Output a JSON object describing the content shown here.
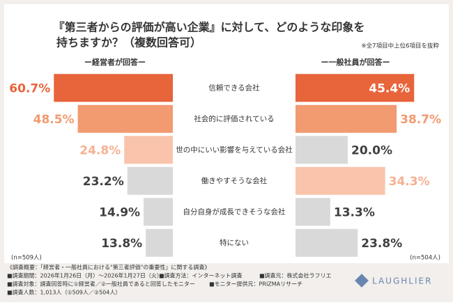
{
  "chart_data": {
    "type": "butterfly",
    "title_lines": [
      "『第三者からの評価が高い企業』に対して、どのような印象を",
      "持ちますか？（複数回答可）"
    ],
    "note": "※全7項目中上位6項目を抜粋",
    "categories": [
      "信頼できる会社",
      "社会的に評価されている",
      "世の中にいい影響を与えている会社",
      "働きやすそうな会社",
      "自分自身が成長できそうな会社",
      "特にない"
    ],
    "series": [
      {
        "name": "ー経営者が回答ー",
        "values": [
          60.7,
          48.5,
          24.8,
          23.2,
          14.9,
          13.8
        ],
        "value_labels": [
          "60.7%",
          "48.5%",
          "24.8%",
          "23.2%",
          "14.9%",
          "13.8%"
        ],
        "colors": [
          "#e8643a",
          "#f29a70",
          "#f9c4ab",
          "#d9d9d9",
          "#d9d9d9",
          "#d9d9d9"
        ],
        "label_colors": [
          "#e8643a",
          "#f29a70",
          "#f5b191",
          "#404040",
          "#404040",
          "#404040"
        ],
        "xlim": [
          0,
          64
        ],
        "n_label": "(n=509人)"
      },
      {
        "name": "ー一般社員が回答ー",
        "values": [
          45.4,
          38.7,
          20.0,
          34.3,
          13.3,
          23.8
        ],
        "value_labels": [
          "45.4%",
          "38.7%",
          "20.0%",
          "34.3%",
          "13.3%",
          "23.8%"
        ],
        "colors": [
          "#e8643a",
          "#f29a70",
          "#d9d9d9",
          "#f9c4ab",
          "#d9d9d9",
          "#d9d9d9"
        ],
        "label_colors": [
          "#e8643a",
          "#f29a70",
          "#404040",
          "#f5b191",
          "#404040",
          "#404040"
        ],
        "xlim": [
          0,
          48
        ],
        "n_label": "(n=504人)"
      }
    ]
  },
  "footer": {
    "heading": "《調査概要：「経営者・一般社員における\"第三者評価\"の重要性」に関する調査》",
    "items": [
      "■調査期間：2026年1月26日（月）〜2026年1月27日（火）",
      "■調査方法：インターネット調査",
      "■調査元：株式会社ラフリエ",
      "■調査対象：調査回答時に①経営者／②一般社員であると回答したモニター",
      "■モニター提供元：PRIZMAリサーチ",
      "■調査人数：1,013人（①509人／②504人）"
    ]
  },
  "logo": "LAUGHLIER"
}
